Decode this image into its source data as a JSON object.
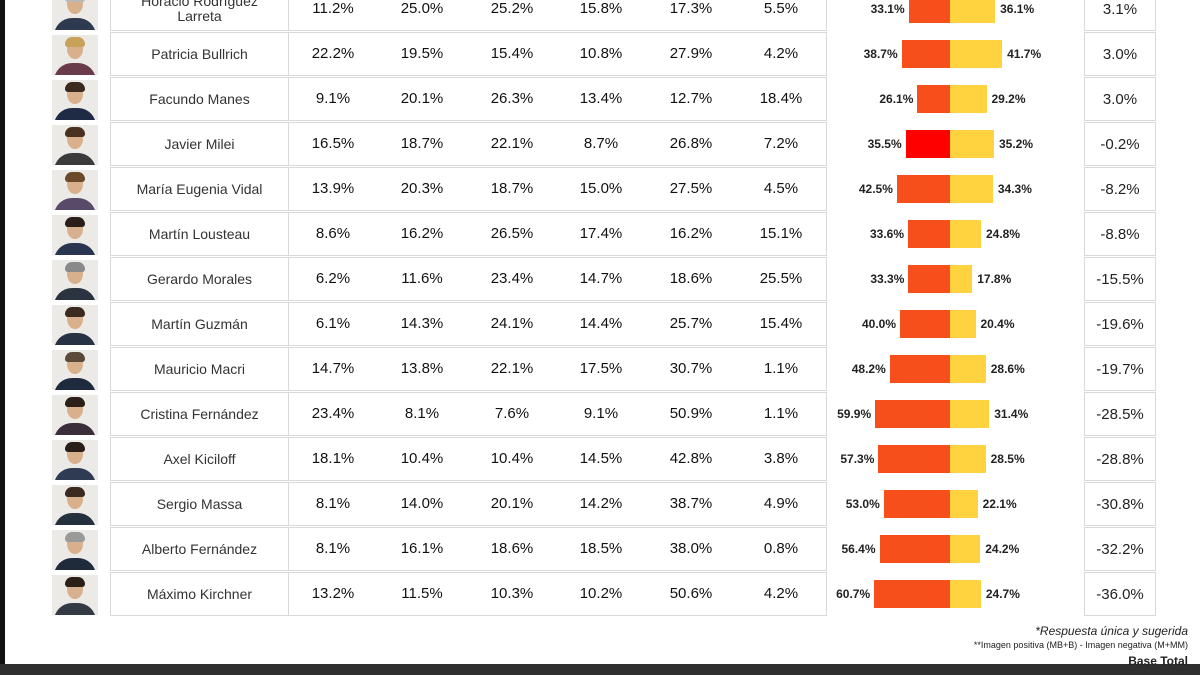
{
  "chart_data": {
    "type": "table",
    "title": "",
    "columns": [
      "",
      "",
      "",
      "",
      "",
      ""
    ],
    "rows": [
      {
        "name": "Horacio Rodríguez\nLarreta",
        "values": [
          "11.2%",
          "25.0%",
          "25.2%",
          "15.8%",
          "17.3%",
          "5.5%"
        ],
        "negative": 33.1,
        "positive": 36.1,
        "negative_label": "33.1%",
        "positive_label": "36.1%",
        "difference": "3.1%"
      },
      {
        "name": "Patricia Bullrich",
        "values": [
          "22.2%",
          "19.5%",
          "15.4%",
          "10.8%",
          "27.9%",
          "4.2%"
        ],
        "negative": 38.7,
        "positive": 41.7,
        "negative_label": "38.7%",
        "positive_label": "41.7%",
        "difference": "3.0%"
      },
      {
        "name": "Facundo Manes",
        "values": [
          "9.1%",
          "20.1%",
          "26.3%",
          "13.4%",
          "12.7%",
          "18.4%"
        ],
        "negative": 26.1,
        "positive": 29.2,
        "negative_label": "26.1%",
        "positive_label": "29.2%",
        "difference": "3.0%"
      },
      {
        "name": "Javier Milei",
        "values": [
          "16.5%",
          "18.7%",
          "22.1%",
          "8.7%",
          "26.8%",
          "7.2%"
        ],
        "negative": 35.5,
        "positive": 35.2,
        "negative_label": "35.5%",
        "positive_label": "35.2%",
        "difference": "-0.2%"
      },
      {
        "name": "María Eugenia Vidal",
        "values": [
          "13.9%",
          "20.3%",
          "18.7%",
          "15.0%",
          "27.5%",
          "4.5%"
        ],
        "negative": 42.5,
        "positive": 34.3,
        "negative_label": "42.5%",
        "positive_label": "34.3%",
        "difference": "-8.2%"
      },
      {
        "name": "Martín Lousteau",
        "values": [
          "8.6%",
          "16.2%",
          "26.5%",
          "17.4%",
          "16.2%",
          "15.1%"
        ],
        "negative": 33.6,
        "positive": 24.8,
        "negative_label": "33.6%",
        "positive_label": "24.8%",
        "difference": "-8.8%"
      },
      {
        "name": "Gerardo Morales",
        "values": [
          "6.2%",
          "11.6%",
          "23.4%",
          "14.7%",
          "18.6%",
          "25.5%"
        ],
        "negative": 33.3,
        "positive": 17.8,
        "negative_label": "33.3%",
        "positive_label": "17.8%",
        "difference": "-15.5%"
      },
      {
        "name": "Martín Guzmán",
        "values": [
          "6.1%",
          "14.3%",
          "24.1%",
          "14.4%",
          "25.7%",
          "15.4%"
        ],
        "negative": 40.0,
        "positive": 20.4,
        "negative_label": "40.0%",
        "positive_label": "20.4%",
        "difference": "-19.6%"
      },
      {
        "name": "Mauricio Macri",
        "values": [
          "14.7%",
          "13.8%",
          "22.1%",
          "17.5%",
          "30.7%",
          "1.1%"
        ],
        "negative": 48.2,
        "positive": 28.6,
        "negative_label": "48.2%",
        "positive_label": "28.6%",
        "difference": "-19.7%"
      },
      {
        "name": "Cristina Fernández",
        "values": [
          "23.4%",
          "8.1%",
          "7.6%",
          "9.1%",
          "50.9%",
          "1.1%"
        ],
        "negative": 59.9,
        "positive": 31.4,
        "negative_label": "59.9%",
        "positive_label": "31.4%",
        "difference": "-28.5%"
      },
      {
        "name": "Axel Kiciloff",
        "values": [
          "18.1%",
          "10.4%",
          "10.4%",
          "14.5%",
          "42.8%",
          "3.8%"
        ],
        "negative": 57.3,
        "positive": 28.5,
        "negative_label": "57.3%",
        "positive_label": "28.5%",
        "difference": "-28.8%"
      },
      {
        "name": "Sergio Massa",
        "values": [
          "8.1%",
          "14.0%",
          "20.1%",
          "14.2%",
          "38.7%",
          "4.9%"
        ],
        "negative": 53.0,
        "positive": 22.1,
        "negative_label": "53.0%",
        "positive_label": "22.1%",
        "difference": "-30.8%"
      },
      {
        "name": "Alberto Fernández",
        "values": [
          "8.1%",
          "16.1%",
          "18.6%",
          "18.5%",
          "38.0%",
          "0.8%"
        ],
        "negative": 56.4,
        "positive": 24.2,
        "negative_label": "56.4%",
        "positive_label": "24.2%",
        "difference": "-32.2%"
      },
      {
        "name": "Máximo Kirchner",
        "values": [
          "13.2%",
          "11.5%",
          "10.3%",
          "10.2%",
          "50.6%",
          "4.2%"
        ],
        "negative": 60.7,
        "positive": 24.7,
        "negative_label": "60.7%",
        "positive_label": "24.7%",
        "difference": "-36.0%"
      }
    ],
    "colors": {
      "negative_bar": "#f74f1b",
      "negative_bar_highlight": "#ff0000",
      "positive_bar": "#ffd23f"
    },
    "highlighted_row": "Javier Milei"
  },
  "notes": {
    "line1": "*Respuesta única y sugerida",
    "line2": "**Imagen positiva (MB+B) - Imagen negativa (M+MM)",
    "line3": "Base Total"
  }
}
